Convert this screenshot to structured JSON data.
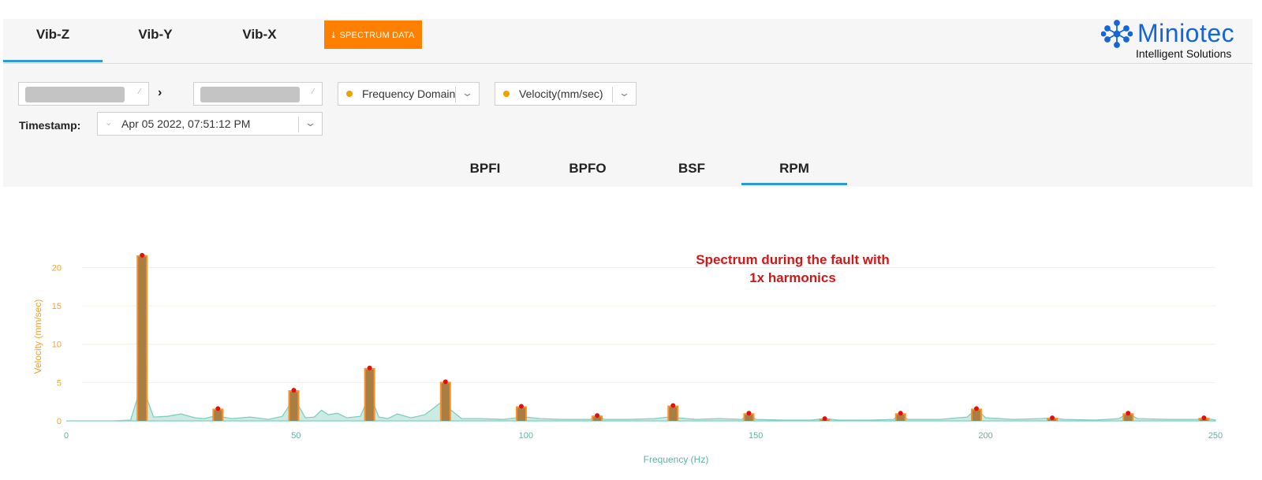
{
  "top_tabs": [
    {
      "label": "Vib-Z",
      "active": true
    },
    {
      "label": "Vib-Y",
      "active": false
    },
    {
      "label": "Vib-X",
      "active": false
    }
  ],
  "spectrum_button": {
    "label": "SPECTRUM DATA",
    "icon": "download-icon"
  },
  "logo": {
    "name": "Miniotec",
    "tagline": "Intelligent Solutions",
    "color": "#1565d8"
  },
  "filters": {
    "domain": {
      "value": "Frequency Domain"
    },
    "unit": {
      "value": "Velocity(mm/sec)"
    },
    "timestamp_label": "Timestamp:",
    "timestamp_value": "Apr 05 2022, 07:51:12 PM"
  },
  "fault_tabs": [
    {
      "label": "BPFI",
      "active": false
    },
    {
      "label": "BPFO",
      "active": false
    },
    {
      "label": "BSF",
      "active": false
    },
    {
      "label": "RPM",
      "active": true
    }
  ],
  "annotation": {
    "line1": "Spectrum during the fault with",
    "line2": "1x harmonics"
  },
  "colors": {
    "accent_tab": "#2a9bd8",
    "button": "#ff8000",
    "spectrum_line": "#7ecfc0",
    "bar": "#ff8c1a",
    "marker": "#e01010",
    "y_axis": "#f0a030",
    "x_axis": "#5fb3a0"
  },
  "chart_data": {
    "type": "bar",
    "xlabel": "Frequency (Hz)",
    "ylabel": "Velocity (mm/sec)",
    "xlim": [
      0,
      250
    ],
    "ylim": [
      0,
      22
    ],
    "x_ticks": [
      0,
      50,
      100,
      150,
      200,
      250
    ],
    "y_ticks": [
      0,
      5,
      10,
      15,
      20
    ],
    "grid": true,
    "harmonic_peaks": [
      {
        "x": 16.5,
        "y": 21.6
      },
      {
        "x": 33.0,
        "y": 1.6
      },
      {
        "x": 49.5,
        "y": 4.0
      },
      {
        "x": 66.0,
        "y": 6.9
      },
      {
        "x": 82.5,
        "y": 5.1
      },
      {
        "x": 99.0,
        "y": 1.9
      },
      {
        "x": 115.5,
        "y": 0.7
      },
      {
        "x": 132.0,
        "y": 2.0
      },
      {
        "x": 148.5,
        "y": 1.0
      },
      {
        "x": 165.0,
        "y": 0.3
      },
      {
        "x": 181.5,
        "y": 1.0
      },
      {
        "x": 198.0,
        "y": 1.6
      },
      {
        "x": 214.5,
        "y": 0.4
      },
      {
        "x": 231.0,
        "y": 1.0
      },
      {
        "x": 247.5,
        "y": 0.4
      }
    ],
    "spectrum_series": {
      "x": [
        0,
        10,
        14,
        15.5,
        16.5,
        17.5,
        19,
        22,
        25,
        28,
        30,
        32,
        33,
        34,
        36,
        40,
        44,
        47,
        48.5,
        49.5,
        50.5,
        52,
        54,
        55.5,
        57,
        59,
        61,
        64,
        65,
        66,
        67,
        68,
        70,
        72,
        75,
        78,
        80,
        81.5,
        82.5,
        83.5,
        86,
        90,
        95,
        98,
        99,
        100,
        103,
        108,
        114,
        115.5,
        117,
        122,
        128,
        131,
        132,
        133,
        137,
        142,
        147,
        148.5,
        150,
        156,
        162,
        165,
        168,
        175,
        180,
        181.5,
        183,
        190,
        196,
        198,
        200,
        206,
        212,
        214.5,
        217,
        224,
        229,
        231,
        233,
        240,
        246,
        247.5,
        250
      ],
      "y": [
        0,
        0,
        0.1,
        3,
        21.6,
        3,
        0.5,
        0.6,
        0.9,
        0.4,
        0.3,
        0.6,
        1.6,
        0.5,
        0.3,
        0.5,
        0.2,
        0.6,
        2,
        4.0,
        2,
        0.4,
        0.5,
        1.4,
        0.8,
        1.0,
        0.4,
        0.6,
        2,
        6.9,
        2,
        0.5,
        0.3,
        0.9,
        0.4,
        0.8,
        1.7,
        2.4,
        5.1,
        1.5,
        0.3,
        0.3,
        0.2,
        0.4,
        1.9,
        0.5,
        0.3,
        0.2,
        0.2,
        0.7,
        0.2,
        0.2,
        0.3,
        0.5,
        2.0,
        0.4,
        0.2,
        0.3,
        0.2,
        1.0,
        0.2,
        0.1,
        0.1,
        0.3,
        0.1,
        0.1,
        0.2,
        1.0,
        0.2,
        0.2,
        0.5,
        1.6,
        0.4,
        0.2,
        0.3,
        0.4,
        0.2,
        0.1,
        0.3,
        1.0,
        0.3,
        0.2,
        0.2,
        0.4,
        0.1
      ]
    }
  }
}
